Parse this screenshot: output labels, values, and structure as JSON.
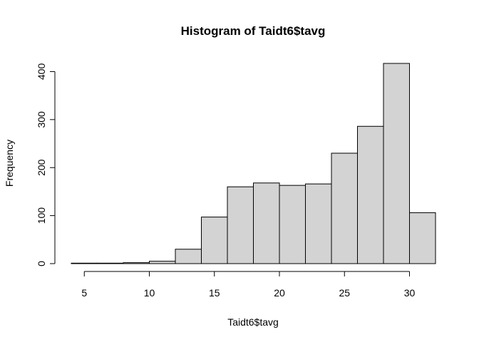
{
  "chart_data": {
    "type": "bar",
    "title": "Histogram of Taidt6$tavg",
    "xlabel": "Taidt6$tavg",
    "ylabel": "Frequency",
    "bin_edges": [
      4,
      6,
      8,
      10,
      12,
      14,
      16,
      18,
      20,
      22,
      24,
      26,
      28,
      30,
      32
    ],
    "values": [
      1,
      1,
      2,
      5,
      30,
      97,
      160,
      168,
      163,
      166,
      230,
      286,
      417,
      106
    ],
    "xticks": [
      5,
      10,
      15,
      20,
      25,
      30
    ],
    "yticks": [
      0,
      100,
      200,
      300,
      400
    ],
    "xlim": [
      4,
      32
    ],
    "ylim": [
      0,
      417
    ],
    "bar_fill": "#d3d3d3",
    "bar_stroke": "#000000"
  }
}
